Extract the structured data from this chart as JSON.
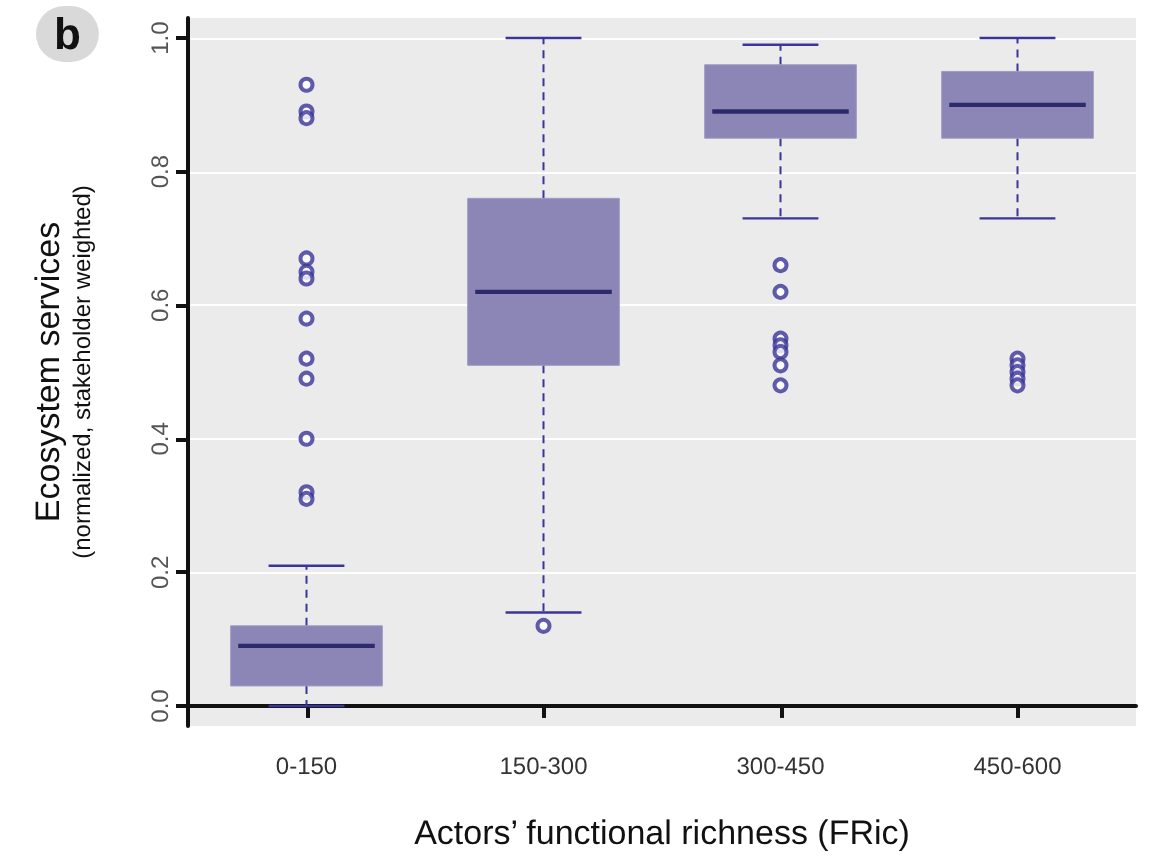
{
  "chart_data": {
    "type": "box",
    "xlabel": "Actors’ functional richness (FRic)",
    "ylabel": "Ecosystem services\n(normalized, stakeholder weighted)",
    "annotations": [
      "b"
    ],
    "categories": [
      "0-150",
      "150-300",
      "300-450",
      "450-600"
    ],
    "color": "#8b86b5",
    "boxes": [
      {
        "low": 0.0,
        "q1": 0.03,
        "median": 0.09,
        "q3": 0.12,
        "high": 0.21,
        "outliers": [
          0.93,
          0.89,
          0.88,
          0.67,
          0.65,
          0.64,
          0.58,
          0.52,
          0.49,
          0.4,
          0.32,
          0.31
        ]
      },
      {
        "low": 0.14,
        "q1": 0.51,
        "median": 0.62,
        "q3": 0.76,
        "high": 1.0,
        "outliers": [
          0.12
        ]
      },
      {
        "low": 0.73,
        "q1": 0.85,
        "median": 0.89,
        "q3": 0.96,
        "high": 0.99,
        "outliers": [
          0.66,
          0.62,
          0.55,
          0.54,
          0.53,
          0.51,
          0.48
        ]
      },
      {
        "low": 0.73,
        "q1": 0.85,
        "median": 0.9,
        "q3": 0.95,
        "high": 1.0,
        "outliers": [
          0.52,
          0.51,
          0.5,
          0.49,
          0.48
        ]
      }
    ],
    "ylim": [
      -0.03,
      1.03
    ],
    "yticks": [
      {
        "value": 0,
        "label": "0.0"
      },
      0.2,
      0.4,
      0.6,
      0.8,
      {
        "value": 1,
        "label": "1.0"
      }
    ],
    "grid": "y"
  }
}
